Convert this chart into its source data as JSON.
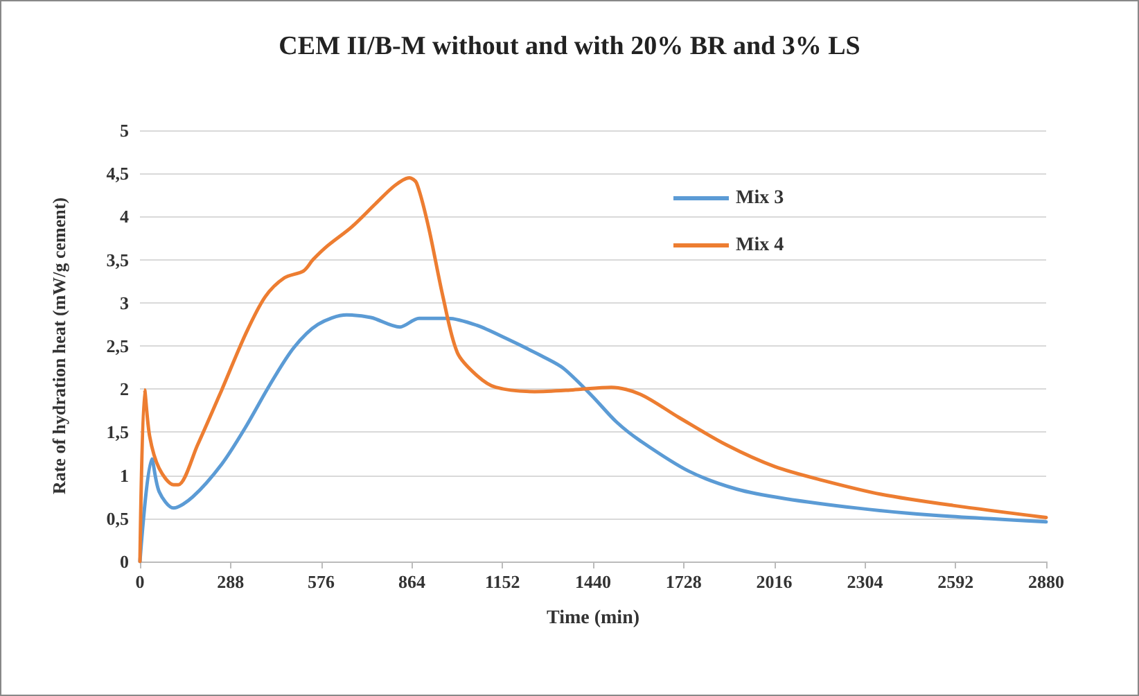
{
  "chart_data": {
    "type": "line",
    "title": "CEM II/B-M without and with 20% BR and 3% LS",
    "xlabel": "Time (min)",
    "ylabel": "Rate of hydration heat (mW/g cement)",
    "xlim": [
      0,
      2880
    ],
    "xticks": [
      0,
      288,
      576,
      864,
      1152,
      1440,
      1728,
      2016,
      2304,
      2592,
      2880
    ],
    "ylim": [
      0,
      5
    ],
    "yticks": [
      0,
      {
        "value": 0.5,
        "label": "0,5"
      },
      1,
      {
        "value": 1.5,
        "label": "1,5"
      },
      2,
      {
        "value": 2.5,
        "label": "2,5"
      },
      3,
      {
        "value": 3.5,
        "label": "3,5"
      },
      4,
      {
        "value": 4.5,
        "label": "4,5"
      },
      5
    ],
    "grid": "y",
    "legend": "top right",
    "marker": "none",
    "line_style": "solid",
    "series": [
      {
        "name": "Mix 3",
        "color": "#5b9bd5",
        "x": [
          0,
          38,
          61,
          107,
          168,
          260,
          336,
          413,
          489,
          566,
          657,
          734,
          826,
          887,
          979,
          1070,
          1162,
          1284,
          1346,
          1437,
          1514,
          1590,
          1743,
          1896,
          2049,
          2278,
          2508,
          2880
        ],
        "values": [
          0,
          1.19,
          0.81,
          0.62,
          0.75,
          1.13,
          1.56,
          2.05,
          2.48,
          2.75,
          2.86,
          2.83,
          2.72,
          2.82,
          2.82,
          2.74,
          2.59,
          2.37,
          2.24,
          1.92,
          1.62,
          1.4,
          1.05,
          0.84,
          0.73,
          0.62,
          0.54,
          0.46
        ]
      },
      {
        "name": "Mix 4",
        "color": "#ed7d31",
        "x": [
          0,
          15,
          31,
          61,
          107,
          122,
          183,
          260,
          336,
          398,
          459,
          520,
          550,
          596,
          673,
          749,
          810,
          856,
          879,
          917,
          963,
          1009,
          1070,
          1131,
          1254,
          1376,
          1498,
          1590,
          1713,
          1865,
          2018,
          2171,
          2355,
          2584,
          2880
        ],
        "values": [
          0,
          1.99,
          1.45,
          1.08,
          0.89,
          0.89,
          1.35,
          1.99,
          2.64,
          3.07,
          3.29,
          3.37,
          3.5,
          3.66,
          3.88,
          4.15,
          4.36,
          4.45,
          4.39,
          3.88,
          3.07,
          2.42,
          2.16,
          2.02,
          1.97,
          1.99,
          2.02,
          1.94,
          1.67,
          1.35,
          1.1,
          0.94,
          0.78,
          0.65,
          0.51
        ]
      }
    ]
  }
}
